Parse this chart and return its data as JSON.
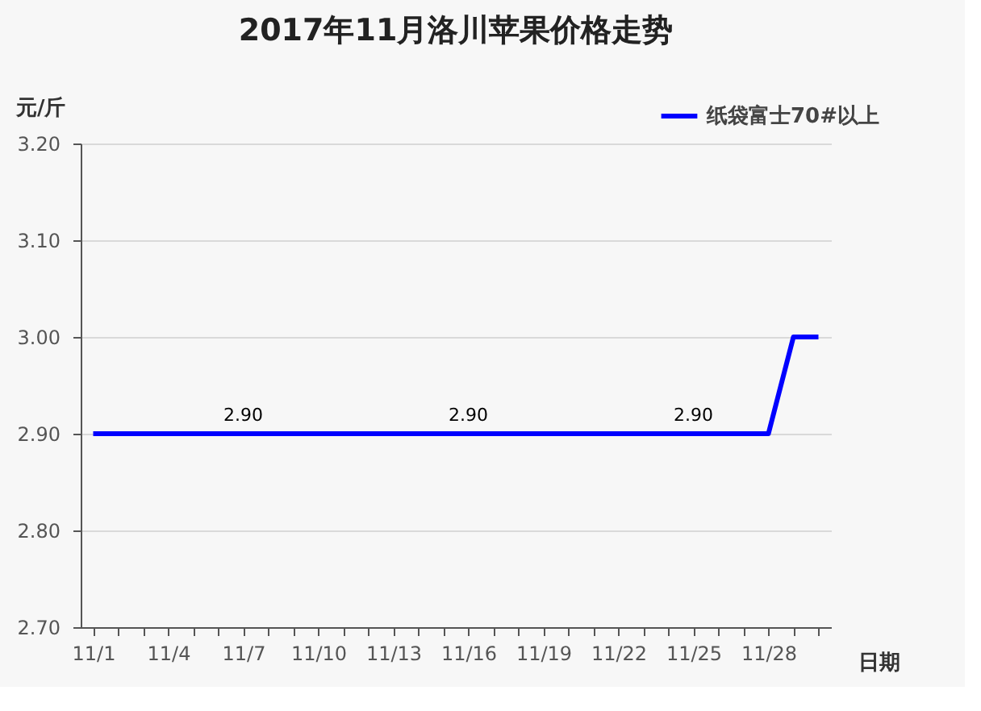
{
  "chart_data": {
    "type": "line",
    "title": "2017年11月洛川苹果价格走势",
    "ylabel": "元/斤",
    "xlabel": "日期",
    "categories": [
      "11/1",
      null,
      null,
      "11/4",
      null,
      null,
      "11/7",
      null,
      null,
      "11/10",
      null,
      null,
      "11/13",
      null,
      null,
      "11/16",
      null,
      null,
      "11/19",
      null,
      null,
      "11/22",
      null,
      null,
      "11/25",
      null,
      null,
      "11/28",
      null,
      null
    ],
    "series": [
      {
        "name": "纸袋富士70#以上",
        "color": "#0000ff",
        "values": [
          2.9,
          2.9,
          2.9,
          2.9,
          2.9,
          2.9,
          2.9,
          2.9,
          2.9,
          2.9,
          2.9,
          2.9,
          2.9,
          2.9,
          2.9,
          2.9,
          2.9,
          2.9,
          2.9,
          2.9,
          2.9,
          2.9,
          2.9,
          2.9,
          2.9,
          2.9,
          2.9,
          2.9,
          3.0,
          3.0
        ],
        "value_labels": [
          null,
          null,
          null,
          null,
          null,
          null,
          "2.90",
          null,
          null,
          null,
          null,
          null,
          null,
          null,
          null,
          "2.90",
          null,
          null,
          null,
          null,
          null,
          null,
          null,
          null,
          "2.90",
          null,
          null,
          null,
          null,
          null
        ]
      }
    ],
    "ylim": [
      2.7,
      3.2
    ],
    "yticks": [
      {
        "value": 2.7,
        "label": "2.70"
      },
      {
        "value": 2.8,
        "label": "2.80"
      },
      {
        "value": 2.9,
        "label": "2.90"
      },
      {
        "value": 3.0,
        "label": "3.00"
      },
      {
        "value": 3.1,
        "label": "3.10"
      },
      {
        "value": 3.2,
        "label": "3.20"
      }
    ],
    "grid": "y",
    "legend": "top right",
    "marker": "none",
    "line_style": "solid"
  }
}
